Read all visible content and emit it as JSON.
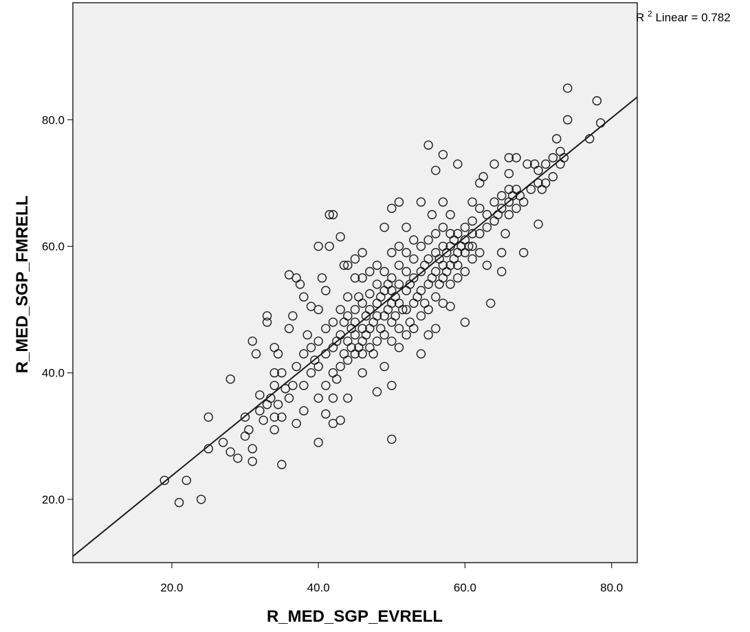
{
  "chart_data": {
    "type": "scatter",
    "title": "",
    "xlabel": "R_MED_SGP_EVRELL",
    "ylabel": "R_MED_SGP_FMRELL",
    "xlim": [
      6.5,
      83.5
    ],
    "ylim": [
      10.0,
      98.5
    ],
    "xticks": [
      20.0,
      40.0,
      60.0,
      80.0
    ],
    "yticks": [
      20.0,
      40.0,
      60.0,
      80.0
    ],
    "xtick_labels": [
      "20.0",
      "40.0",
      "60.0",
      "80.0"
    ],
    "ytick_labels": [
      "20.0",
      "40.0",
      "60.0",
      "80.0"
    ],
    "grid": false,
    "plot_background": "#f0f0f0",
    "marker": "open-circle",
    "fit_line": {
      "type": "linear",
      "label_prefix": "R",
      "label_superscript": "2",
      "label_text": " Linear = 0.782",
      "points": [
        [
          6.5,
          11.0
        ],
        [
          83.5,
          83.6
        ]
      ]
    },
    "series": [
      {
        "values": [
          [
            19.0,
            23.0
          ],
          [
            21.0,
            19.5
          ],
          [
            22.0,
            23.0
          ],
          [
            24.0,
            20.0
          ],
          [
            25.0,
            28.0
          ],
          [
            25.0,
            33.0
          ],
          [
            27.0,
            29.0
          ],
          [
            28.0,
            27.5
          ],
          [
            28.0,
            39.0
          ],
          [
            29.0,
            26.5
          ],
          [
            30.0,
            30.0
          ],
          [
            30.0,
            33.0
          ],
          [
            30.5,
            31.0
          ],
          [
            31.0,
            26.0
          ],
          [
            31.0,
            28.0
          ],
          [
            31.0,
            45.0
          ],
          [
            31.5,
            43.0
          ],
          [
            32.0,
            34.0
          ],
          [
            32.0,
            36.5
          ],
          [
            32.5,
            32.5
          ],
          [
            33.0,
            35.0
          ],
          [
            33.0,
            48.0
          ],
          [
            33.0,
            49.0
          ],
          [
            33.5,
            36.0
          ],
          [
            34.0,
            31.0
          ],
          [
            34.0,
            33.0
          ],
          [
            34.0,
            38.0
          ],
          [
            34.0,
            40.0
          ],
          [
            34.0,
            44.0
          ],
          [
            34.5,
            35.0
          ],
          [
            34.5,
            43.0
          ],
          [
            35.0,
            25.5
          ],
          [
            35.0,
            33.0
          ],
          [
            35.0,
            40.0
          ],
          [
            35.5,
            37.5
          ],
          [
            36.0,
            36.0
          ],
          [
            36.0,
            47.0
          ],
          [
            36.0,
            55.5
          ],
          [
            36.5,
            38.0
          ],
          [
            36.5,
            49.0
          ],
          [
            37.0,
            32.0
          ],
          [
            37.0,
            41.0
          ],
          [
            37.0,
            55.0
          ],
          [
            37.5,
            54.0
          ],
          [
            38.0,
            34.0
          ],
          [
            38.0,
            38.0
          ],
          [
            38.0,
            43.0
          ],
          [
            38.0,
            52.0
          ],
          [
            38.5,
            46.0
          ],
          [
            39.0,
            40.0
          ],
          [
            39.0,
            44.0
          ],
          [
            39.0,
            50.5
          ],
          [
            39.5,
            42.0
          ],
          [
            40.0,
            29.0
          ],
          [
            40.0,
            36.0
          ],
          [
            40.0,
            41.0
          ],
          [
            40.0,
            45.0
          ],
          [
            40.0,
            50.0
          ],
          [
            40.0,
            60.0
          ],
          [
            40.5,
            55.0
          ],
          [
            41.0,
            33.5
          ],
          [
            41.0,
            38.0
          ],
          [
            41.0,
            43.0
          ],
          [
            41.0,
            47.0
          ],
          [
            41.0,
            53.0
          ],
          [
            41.5,
            60.0
          ],
          [
            41.5,
            65.0
          ],
          [
            42.0,
            32.0
          ],
          [
            42.0,
            36.0
          ],
          [
            42.0,
            40.0
          ],
          [
            42.0,
            44.0
          ],
          [
            42.0,
            48.0
          ],
          [
            42.0,
            65.0
          ],
          [
            42.5,
            39.0
          ],
          [
            42.5,
            45.0
          ],
          [
            43.0,
            32.5
          ],
          [
            43.0,
            41.0
          ],
          [
            43.0,
            46.0
          ],
          [
            43.0,
            50.0
          ],
          [
            43.0,
            61.5
          ],
          [
            43.5,
            43.0
          ],
          [
            43.5,
            48.0
          ],
          [
            43.5,
            57.0
          ],
          [
            44.0,
            36.0
          ],
          [
            44.0,
            42.0
          ],
          [
            44.0,
            45.0
          ],
          [
            44.0,
            49.0
          ],
          [
            44.0,
            52.0
          ],
          [
            44.0,
            57.0
          ],
          [
            44.5,
            44.0
          ],
          [
            44.5,
            47.0
          ],
          [
            45.0,
            43.0
          ],
          [
            45.0,
            46.0
          ],
          [
            45.0,
            48.0
          ],
          [
            45.0,
            50.0
          ],
          [
            45.0,
            55.0
          ],
          [
            45.0,
            58.0
          ],
          [
            45.5,
            44.0
          ],
          [
            45.5,
            52.0
          ],
          [
            46.0,
            40.0
          ],
          [
            46.0,
            43.0
          ],
          [
            46.0,
            45.0
          ],
          [
            46.0,
            47.0
          ],
          [
            46.0,
            51.0
          ],
          [
            46.0,
            55.0
          ],
          [
            46.0,
            59.0
          ],
          [
            46.5,
            46.0
          ],
          [
            46.5,
            49.0
          ],
          [
            47.0,
            44.0
          ],
          [
            47.0,
            47.0
          ],
          [
            47.0,
            50.0
          ],
          [
            47.0,
            52.5
          ],
          [
            47.0,
            56.0
          ],
          [
            47.5,
            43.0
          ],
          [
            47.5,
            48.0
          ],
          [
            48.0,
            37.0
          ],
          [
            48.0,
            45.0
          ],
          [
            48.0,
            49.0
          ],
          [
            48.0,
            51.0
          ],
          [
            48.0,
            54.0
          ],
          [
            48.0,
            57.0
          ],
          [
            48.5,
            47.0
          ],
          [
            48.5,
            52.0
          ],
          [
            49.0,
            41.0
          ],
          [
            49.0,
            46.0
          ],
          [
            49.0,
            49.0
          ],
          [
            49.0,
            53.0
          ],
          [
            49.0,
            56.0
          ],
          [
            49.0,
            63.0
          ],
          [
            49.5,
            50.0
          ],
          [
            49.5,
            54.0
          ],
          [
            50.0,
            29.5
          ],
          [
            50.0,
            38.0
          ],
          [
            50.0,
            45.0
          ],
          [
            50.0,
            48.0
          ],
          [
            50.0,
            51.0
          ],
          [
            50.0,
            53.0
          ],
          [
            50.0,
            55.0
          ],
          [
            50.0,
            59.0
          ],
          [
            50.0,
            66.0
          ],
          [
            50.5,
            49.0
          ],
          [
            50.5,
            52.0
          ],
          [
            51.0,
            44.0
          ],
          [
            51.0,
            47.0
          ],
          [
            51.0,
            51.0
          ],
          [
            51.0,
            54.0
          ],
          [
            51.0,
            57.0
          ],
          [
            51.0,
            60.0
          ],
          [
            51.0,
            67.0
          ],
          [
            51.5,
            50.0
          ],
          [
            52.0,
            46.0
          ],
          [
            52.0,
            50.0
          ],
          [
            52.0,
            53.0
          ],
          [
            52.0,
            56.0
          ],
          [
            52.0,
            59.0
          ],
          [
            52.0,
            63.0
          ],
          [
            52.5,
            48.0
          ],
          [
            52.5,
            54.0
          ],
          [
            53.0,
            47.0
          ],
          [
            53.0,
            51.0
          ],
          [
            53.0,
            55.0
          ],
          [
            53.0,
            58.0
          ],
          [
            53.0,
            61.0
          ],
          [
            53.5,
            52.0
          ],
          [
            54.0,
            43.0
          ],
          [
            54.0,
            49.0
          ],
          [
            54.0,
            53.0
          ],
          [
            54.0,
            56.0
          ],
          [
            54.0,
            60.0
          ],
          [
            54.0,
            67.0
          ],
          [
            54.5,
            51.0
          ],
          [
            54.5,
            57.0
          ],
          [
            55.0,
            46.0
          ],
          [
            55.0,
            50.0
          ],
          [
            55.0,
            54.0
          ],
          [
            55.0,
            58.0
          ],
          [
            55.0,
            61.0
          ],
          [
            55.0,
            76.0
          ],
          [
            55.5,
            55.0
          ],
          [
            55.5,
            65.0
          ],
          [
            56.0,
            47.0
          ],
          [
            56.0,
            52.0
          ],
          [
            56.0,
            56.0
          ],
          [
            56.0,
            59.0
          ],
          [
            56.0,
            62.0
          ],
          [
            56.0,
            72.0
          ],
          [
            56.5,
            54.0
          ],
          [
            56.5,
            58.0
          ],
          [
            57.0,
            51.0
          ],
          [
            57.0,
            55.0
          ],
          [
            57.0,
            57.0
          ],
          [
            57.0,
            60.0
          ],
          [
            57.0,
            63.0
          ],
          [
            57.0,
            67.0
          ],
          [
            57.0,
            74.5
          ],
          [
            57.5,
            56.0
          ],
          [
            57.5,
            59.0
          ],
          [
            58.0,
            50.5
          ],
          [
            58.0,
            54.0
          ],
          [
            58.0,
            57.0
          ],
          [
            58.0,
            60.0
          ],
          [
            58.0,
            62.0
          ],
          [
            58.0,
            65.0
          ],
          [
            58.5,
            58.0
          ],
          [
            58.5,
            61.0
          ],
          [
            59.0,
            55.0
          ],
          [
            59.0,
            57.0
          ],
          [
            59.0,
            59.0
          ],
          [
            59.0,
            62.0
          ],
          [
            59.0,
            73.0
          ],
          [
            59.5,
            60.0
          ],
          [
            60.0,
            48.0
          ],
          [
            60.0,
            56.0
          ],
          [
            60.0,
            59.0
          ],
          [
            60.0,
            61.0
          ],
          [
            60.0,
            63.0
          ],
          [
            60.5,
            60.0
          ],
          [
            61.0,
            58.0
          ],
          [
            61.0,
            60.0
          ],
          [
            61.0,
            62.0
          ],
          [
            61.0,
            64.0
          ],
          [
            61.0,
            67.0
          ],
          [
            62.0,
            59.0
          ],
          [
            62.0,
            62.0
          ],
          [
            62.0,
            66.0
          ],
          [
            62.0,
            70.0
          ],
          [
            62.5,
            71.0
          ],
          [
            63.0,
            57.0
          ],
          [
            63.0,
            63.0
          ],
          [
            63.0,
            65.0
          ],
          [
            63.5,
            51.0
          ],
          [
            64.0,
            64.0
          ],
          [
            64.0,
            67.0
          ],
          [
            64.0,
            73.0
          ],
          [
            64.5,
            65.0
          ],
          [
            65.0,
            56.0
          ],
          [
            65.0,
            59.0
          ],
          [
            65.0,
            66.0
          ],
          [
            65.0,
            68.0
          ],
          [
            65.5,
            62.0
          ],
          [
            66.0,
            65.0
          ],
          [
            66.0,
            67.0
          ],
          [
            66.0,
            69.0
          ],
          [
            66.0,
            71.5
          ],
          [
            66.0,
            74.0
          ],
          [
            66.5,
            68.0
          ],
          [
            67.0,
            66.0
          ],
          [
            67.0,
            69.0
          ],
          [
            67.0,
            74.0
          ],
          [
            67.5,
            68.0
          ],
          [
            68.0,
            59.0
          ],
          [
            68.0,
            67.0
          ],
          [
            68.5,
            73.0
          ],
          [
            69.0,
            69.0
          ],
          [
            69.5,
            73.0
          ],
          [
            70.0,
            63.5
          ],
          [
            70.0,
            70.0
          ],
          [
            70.0,
            72.0
          ],
          [
            70.5,
            69.0
          ],
          [
            71.0,
            70.0
          ],
          [
            71.0,
            73.0
          ],
          [
            72.0,
            71.0
          ],
          [
            72.0,
            74.0
          ],
          [
            72.5,
            77.0
          ],
          [
            73.0,
            73.0
          ],
          [
            73.0,
            75.0
          ],
          [
            73.5,
            74.0
          ],
          [
            74.0,
            80.0
          ],
          [
            74.0,
            85.0
          ],
          [
            77.0,
            77.0
          ],
          [
            78.0,
            83.0
          ],
          [
            78.5,
            79.5
          ]
        ]
      }
    ]
  }
}
